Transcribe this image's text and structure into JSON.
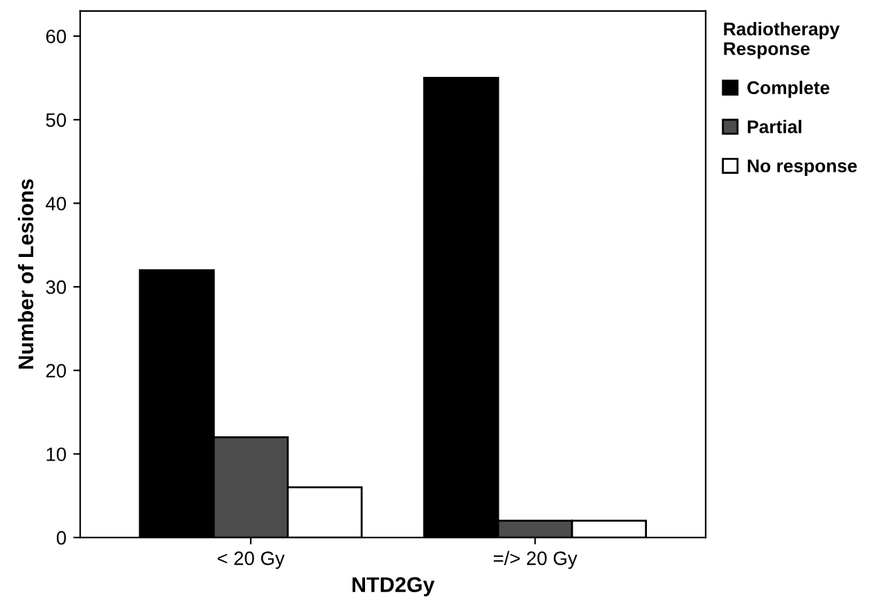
{
  "chart_data": {
    "type": "bar",
    "categories": [
      "< 20 Gy",
      "=/> 20 Gy"
    ],
    "xlabel": "NTD2Gy",
    "ylabel": "Number of Lesions",
    "legend_title": "Radiotherapy\nResponse",
    "series": [
      {
        "name": "Complete",
        "color": "#000000",
        "values": [
          32,
          55
        ]
      },
      {
        "name": "Partial",
        "color": "#4d4d4d",
        "values": [
          12,
          2
        ]
      },
      {
        "name": "No response",
        "color": "#ffffff",
        "values": [
          6,
          2
        ]
      }
    ],
    "ylim": [
      0,
      63
    ],
    "yticks": [
      0,
      10,
      20,
      30,
      40,
      50,
      60
    ],
    "grid": false,
    "legend": "top right"
  }
}
